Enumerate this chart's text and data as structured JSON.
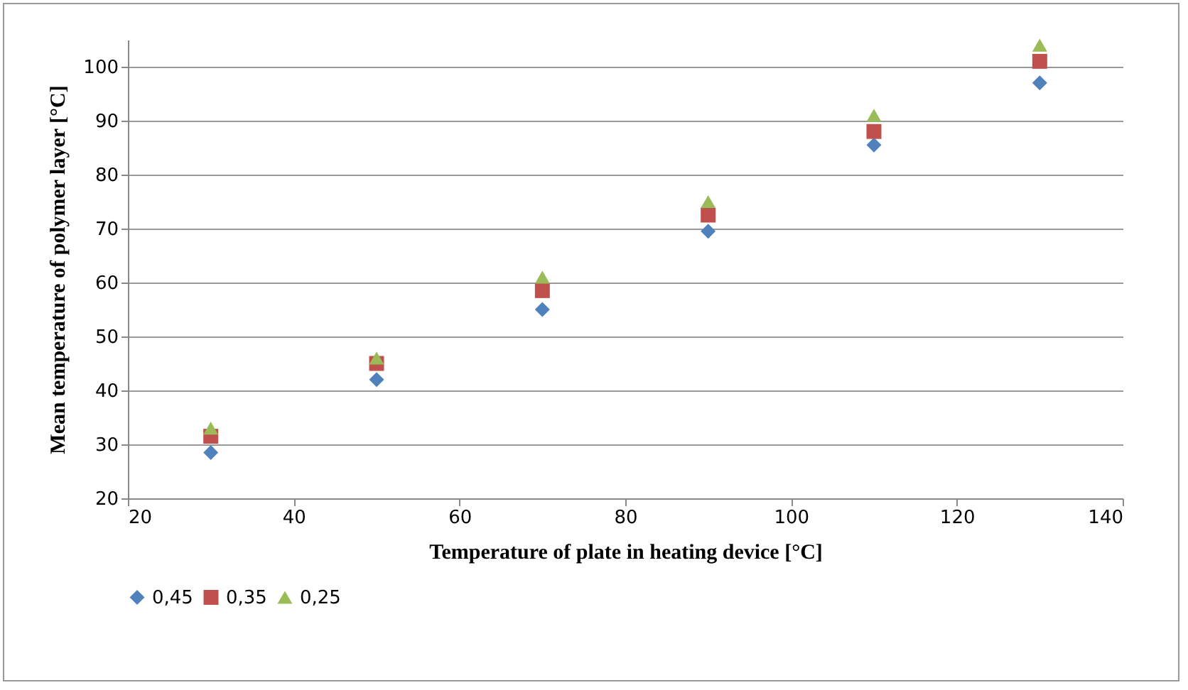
{
  "chart_data": {
    "type": "scatter",
    "xlabel": "Temperature  of plate in heating device [°C]",
    "ylabel": "Mean  temperature  of polymer  layer [°C]",
    "x": [
      30,
      50,
      70,
      90,
      110,
      130
    ],
    "series": [
      {
        "name": "0,45",
        "color": "#4f81bd",
        "marker": "diamond",
        "values": [
          28.5,
          42,
          55,
          69.5,
          85.5,
          97
        ]
      },
      {
        "name": "0,35",
        "color": "#c0504d",
        "marker": "square",
        "values": [
          31.5,
          45,
          58.5,
          72.5,
          88,
          101
        ]
      },
      {
        "name": "0,25",
        "color": "#9bbb59",
        "marker": "triangle",
        "values": [
          33,
          46,
          61,
          75,
          91,
          104
        ]
      }
    ],
    "xlim": [
      20,
      140
    ],
    "xticks": [
      20,
      40,
      60,
      80,
      100,
      120,
      140
    ],
    "ylim": [
      20,
      105
    ],
    "yticks": [
      20,
      30,
      40,
      50,
      60,
      70,
      80,
      90,
      100
    ],
    "grid": "y",
    "legend": "bottom"
  }
}
